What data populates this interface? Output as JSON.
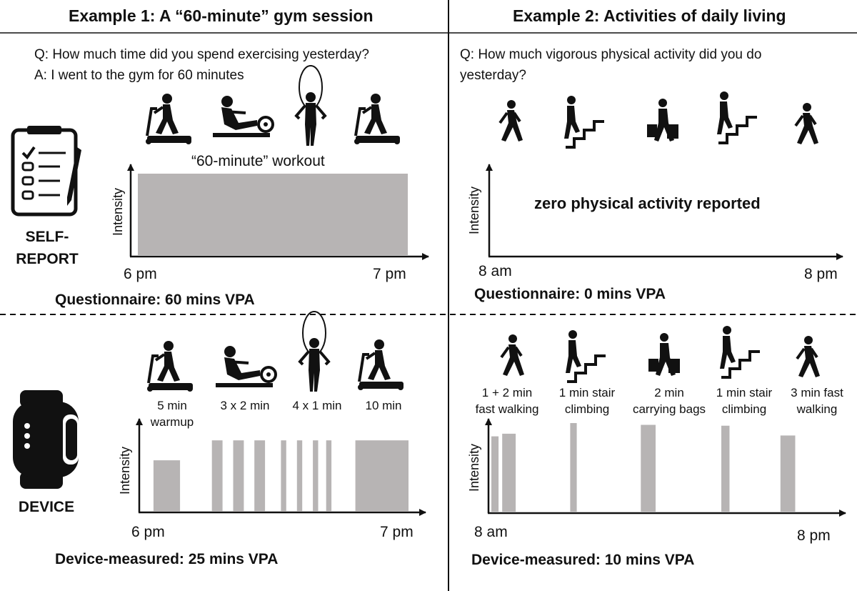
{
  "example1": {
    "header": "Example 1: A “60-minute” gym session",
    "question": "Q: How much time did you spend exercising yesterday?",
    "answer": "A: I went to the gym for 60 minutes",
    "workout_label": "“60-minute” workout",
    "self_report": {
      "y_label": "Intensity",
      "x_start": "6 pm",
      "x_end": "7 pm",
      "summary": "Questionnaire: 60 mins VPA"
    },
    "device": {
      "y_label": "Intensity",
      "x_start": "6 pm",
      "x_end": "7 pm",
      "summary": "Device-measured: 25 mins VPA",
      "activities": [
        {
          "label_1": "5 min",
          "label_2": "warmup",
          "icon": "treadmill-icon"
        },
        {
          "label_1": "3 x 2 min",
          "label_2": "",
          "icon": "rowing-machine-icon"
        },
        {
          "label_1": "4 x 1 min",
          "label_2": "",
          "icon": "jump-rope-icon"
        },
        {
          "label_1": "10 min",
          "label_2": "",
          "icon": "treadmill-icon"
        }
      ]
    }
  },
  "example2": {
    "header": "Example 2: Activities of daily living",
    "question_1": "Q: How much vigorous physical activity did you do",
    "question_2": "yesterday?",
    "self_report": {
      "y_label": "Intensity",
      "x_start": "8 am",
      "x_end": "8 pm",
      "note": "zero physical activity reported",
      "summary": "Questionnaire: 0 mins VPA"
    },
    "device": {
      "y_label": "Intensity",
      "x_start": "8 am",
      "x_end": "8 pm",
      "summary": "Device-measured: 10 mins VPA",
      "activities": [
        {
          "label_1": "1 + 2 min",
          "label_2": "fast walking",
          "icon": "walking-icon"
        },
        {
          "label_1": "1 min stair",
          "label_2": "climbing",
          "icon": "stair-climbing-icon"
        },
        {
          "label_1": "2 min",
          "label_2": "carrying bags",
          "icon": "carrying-bags-icon"
        },
        {
          "label_1": "1 min stair",
          "label_2": "climbing",
          "icon": "stair-climbing-icon"
        },
        {
          "label_1": "3 min fast",
          "label_2": "walking",
          "icon": "walking-icon"
        }
      ]
    }
  },
  "side_labels": {
    "self_report_1": "SELF-",
    "self_report_2": "REPORT",
    "device": "DEVICE"
  },
  "colors": {
    "bar": "#b7b4b4",
    "ink": "#111111"
  },
  "chart_data": [
    {
      "type": "area",
      "title": "",
      "xlabel": "",
      "ylabel": "Intensity",
      "x_ticks": [
        "6 pm",
        "7 pm"
      ],
      "series": [
        {
          "name": "“60-minute” workout",
          "start_min": 0,
          "end_min": 60,
          "intensity": "high"
        }
      ]
    },
    {
      "type": "bar",
      "title": "",
      "xlabel": "",
      "ylabel": "Intensity",
      "x_ticks": [
        "8 am",
        "8 pm"
      ],
      "values": []
    },
    {
      "type": "bar",
      "title": "",
      "xlabel": "",
      "ylabel": "Intensity",
      "x_ticks": [
        "6 pm",
        "7 pm"
      ],
      "x_unit": "minutes after 6 pm",
      "bars": [
        {
          "start": 2,
          "end": 7,
          "level": 0.62
        },
        {
          "start": 13,
          "end": 15,
          "level": 0.86
        },
        {
          "start": 17,
          "end": 19,
          "level": 0.86
        },
        {
          "start": 21,
          "end": 23,
          "level": 0.86
        },
        {
          "start": 26,
          "end": 27,
          "level": 0.86
        },
        {
          "start": 29,
          "end": 30,
          "level": 0.86
        },
        {
          "start": 32,
          "end": 33,
          "level": 0.86
        },
        {
          "start": 34.5,
          "end": 35.5,
          "level": 0.86
        },
        {
          "start": 40,
          "end": 50,
          "level": 0.86
        }
      ]
    },
    {
      "type": "bar",
      "title": "",
      "xlabel": "",
      "ylabel": "Intensity",
      "x_ticks": [
        "8 am",
        "8 pm"
      ],
      "x_unit": "hours after 8 am",
      "bars": [
        {
          "start": 0.0,
          "end": 0.22,
          "level": 0.85
        },
        {
          "start": 0.33,
          "end": 0.74,
          "level": 0.88
        },
        {
          "start": 2.4,
          "end": 2.6,
          "level": 1.0
        },
        {
          "start": 4.55,
          "end": 5.0,
          "level": 0.98
        },
        {
          "start": 7.0,
          "end": 7.25,
          "level": 0.97
        },
        {
          "start": 8.8,
          "end": 9.25,
          "level": 0.86
        }
      ]
    }
  ]
}
